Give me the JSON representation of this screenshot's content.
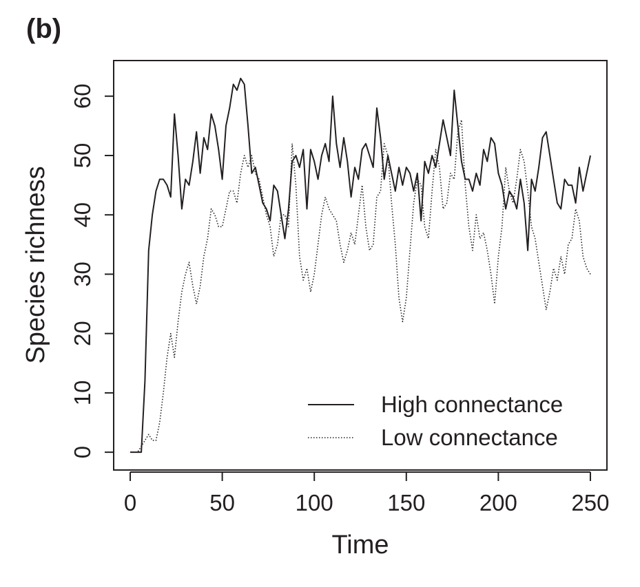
{
  "panel_label": "(b)",
  "chart_data": {
    "type": "line",
    "xlabel": "Time",
    "ylabel": "Species richness",
    "xlim": [
      -9,
      259
    ],
    "ylim": [
      -3,
      66
    ],
    "x_ticks": [
      0,
      50,
      100,
      150,
      200,
      250
    ],
    "y_ticks": [
      0,
      10,
      20,
      30,
      40,
      50,
      60
    ],
    "grid": false,
    "legend_position": "bottom-right",
    "series": [
      {
        "name": "High connectance",
        "line_style": "solid",
        "color": "#231f20",
        "x": [
          0,
          2,
          4,
          6,
          8,
          10,
          12,
          14,
          16,
          18,
          20,
          22,
          24,
          26,
          28,
          30,
          32,
          34,
          36,
          38,
          40,
          42,
          44,
          46,
          48,
          50,
          52,
          54,
          56,
          58,
          60,
          62,
          64,
          66,
          68,
          70,
          72,
          74,
          76,
          78,
          80,
          82,
          84,
          86,
          88,
          90,
          92,
          94,
          96,
          98,
          100,
          102,
          104,
          106,
          108,
          110,
          112,
          114,
          116,
          118,
          120,
          122,
          124,
          126,
          128,
          130,
          132,
          134,
          136,
          138,
          140,
          142,
          144,
          146,
          148,
          150,
          152,
          154,
          156,
          158,
          160,
          162,
          164,
          166,
          168,
          170,
          172,
          174,
          176,
          178,
          180,
          182,
          184,
          186,
          188,
          190,
          192,
          194,
          196,
          198,
          200,
          202,
          204,
          206,
          208,
          210,
          212,
          214,
          216,
          218,
          220,
          222,
          224,
          226,
          228,
          230,
          232,
          234,
          236,
          238,
          240,
          242,
          244,
          246,
          248,
          250
        ],
        "y": [
          0,
          0,
          0,
          0,
          12,
          34,
          40,
          44,
          46,
          46,
          45,
          43,
          57,
          50,
          41,
          46,
          45,
          49,
          54,
          47,
          53,
          51,
          57,
          55,
          51,
          46,
          55,
          58,
          62,
          61,
          63,
          62,
          55,
          47,
          48,
          45,
          42,
          41,
          39,
          45,
          44,
          40,
          36,
          41,
          49,
          50,
          48,
          51,
          41,
          51,
          49,
          46,
          50,
          52,
          49,
          60,
          52,
          48,
          53,
          49,
          43,
          48,
          46,
          51,
          52,
          50,
          48,
          58,
          53,
          46,
          50,
          47,
          44,
          48,
          45,
          48,
          47,
          44,
          47,
          39,
          49,
          47,
          50,
          48,
          52,
          56,
          53,
          50,
          61,
          55,
          49,
          46,
          46,
          44,
          47,
          45,
          51,
          49,
          53,
          52,
          47,
          45,
          41,
          44,
          43,
          41,
          46,
          42,
          34,
          46,
          44,
          48,
          53,
          54,
          50,
          46,
          42,
          41,
          46,
          45,
          45,
          42,
          48,
          44,
          47,
          50
        ]
      },
      {
        "name": "Low connectance",
        "line_style": "dotted",
        "color": "#231f20",
        "x": [
          0,
          2,
          4,
          6,
          8,
          10,
          12,
          14,
          16,
          18,
          20,
          22,
          24,
          26,
          28,
          30,
          32,
          34,
          36,
          38,
          40,
          42,
          44,
          46,
          48,
          50,
          52,
          54,
          56,
          58,
          60,
          62,
          64,
          66,
          68,
          70,
          72,
          74,
          76,
          78,
          80,
          82,
          84,
          86,
          88,
          90,
          92,
          94,
          96,
          98,
          100,
          102,
          104,
          106,
          108,
          110,
          112,
          114,
          116,
          118,
          120,
          122,
          124,
          126,
          128,
          130,
          132,
          134,
          136,
          138,
          140,
          142,
          144,
          146,
          148,
          150,
          152,
          154,
          156,
          158,
          160,
          162,
          164,
          166,
          168,
          170,
          172,
          174,
          176,
          178,
          180,
          182,
          184,
          186,
          188,
          190,
          192,
          194,
          196,
          198,
          200,
          202,
          204,
          206,
          208,
          210,
          212,
          214,
          216,
          218,
          220,
          222,
          224,
          226,
          228,
          230,
          232,
          234,
          236,
          238,
          240,
          242,
          244,
          246,
          248,
          250
        ],
        "y": [
          0,
          0,
          0,
          1,
          2,
          3,
          2,
          2,
          5,
          10,
          16,
          20,
          16,
          22,
          27,
          30,
          32,
          28,
          25,
          28,
          33,
          36,
          41,
          40,
          38,
          38,
          41,
          44,
          44,
          42,
          47,
          50,
          48,
          50,
          47,
          46,
          43,
          40,
          38,
          33,
          35,
          40,
          40,
          38,
          52,
          45,
          33,
          29,
          31,
          27,
          30,
          35,
          40,
          43,
          41,
          40,
          39,
          35,
          32,
          34,
          37,
          35,
          40,
          45,
          38,
          34,
          35,
          43,
          44,
          52,
          50,
          42,
          35,
          26,
          22,
          26,
          34,
          42,
          46,
          45,
          38,
          36,
          44,
          51,
          48,
          41,
          42,
          47,
          46,
          54,
          56,
          45,
          38,
          34,
          40,
          36,
          37,
          34,
          30,
          25,
          33,
          38,
          48,
          44,
          42,
          46,
          51,
          49,
          44,
          38,
          36,
          32,
          28,
          24,
          27,
          31,
          29,
          33,
          30,
          35,
          36,
          41,
          39,
          33,
          31,
          30
        ]
      }
    ]
  }
}
